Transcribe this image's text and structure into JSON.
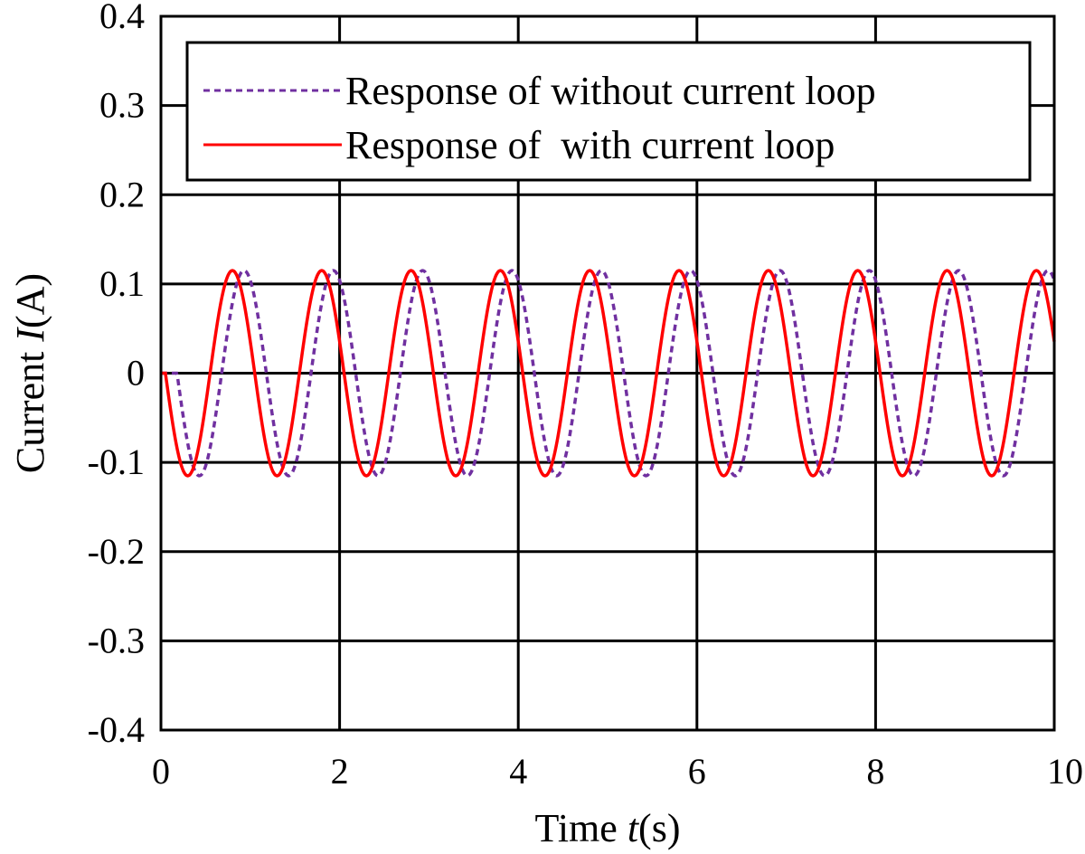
{
  "chart_data": {
    "type": "line",
    "title": "",
    "xlabel": {
      "prefix": "Time ",
      "var": "t",
      "suffix": "(s)"
    },
    "ylabel": {
      "prefix": "Current ",
      "var": "I",
      "suffix": "(A)"
    },
    "xlim": [
      0,
      10
    ],
    "ylim": [
      -0.4,
      0.4
    ],
    "xticks": [
      0,
      2,
      4,
      6,
      8,
      10
    ],
    "xtick_labels": [
      "0",
      "2",
      "4",
      "6",
      "8",
      "10"
    ],
    "yticks": [
      0.4,
      0.3,
      0.2,
      0.1,
      0,
      -0.1,
      -0.2,
      -0.3,
      -0.4
    ],
    "ytick_labels": [
      "0.4",
      "0.3",
      "0.2",
      "0.1",
      "0",
      "-0.1",
      "-0.2",
      "-0.3",
      "-0.4"
    ],
    "grid": true,
    "legend_position": "top-right",
    "series": [
      {
        "name": "Response of without current loop",
        "color": "#7030a0",
        "style": "dashed",
        "function": "-A*sin(2*pi*f*(t - d))",
        "amplitude": 0.115,
        "frequency_hz": 1.0,
        "delay_s": 0.18
      },
      {
        "name": "Response of  with current loop",
        "color": "#ff0000",
        "style": "solid",
        "function": "-A*sin(2*pi*f*(t - d))",
        "amplitude": 0.115,
        "frequency_hz": 1.0,
        "delay_s": 0.05
      }
    ]
  }
}
